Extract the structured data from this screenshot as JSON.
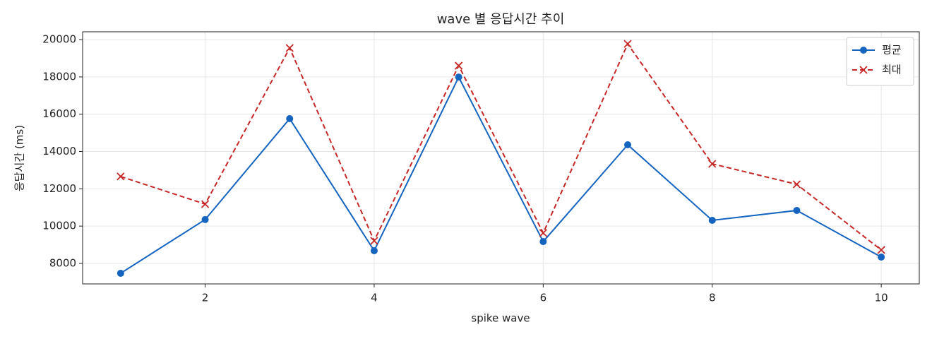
{
  "chart_data": {
    "type": "line",
    "title": "wave 별 응답시간 추이",
    "x_label": "spike wave",
    "y_label": "응답시간 (ms)",
    "x": [
      1,
      2,
      3,
      4,
      5,
      6,
      7,
      8,
      9,
      10
    ],
    "series": [
      {
        "name": "평균",
        "color": "#1565c0",
        "marker": "circle",
        "dash": "solid",
        "values": [
          7470,
          10350,
          15760,
          8680,
          17990,
          9170,
          14360,
          10310,
          10840,
          8340
        ]
      },
      {
        "name": "최대",
        "color": "#c62828",
        "marker": "x",
        "dash": "dashed",
        "values": [
          12660,
          11180,
          19550,
          9210,
          18600,
          9630,
          19770,
          13340,
          12240,
          8720
        ]
      }
    ],
    "xlim": [
      0.55,
      10.45
    ],
    "ylim": [
      6900,
      20420
    ],
    "xticks": [
      2,
      4,
      6,
      8,
      10
    ],
    "yticks": [
      8000,
      10000,
      12000,
      14000,
      16000,
      18000,
      20000
    ],
    "grid": true,
    "legend": "upper right"
  }
}
